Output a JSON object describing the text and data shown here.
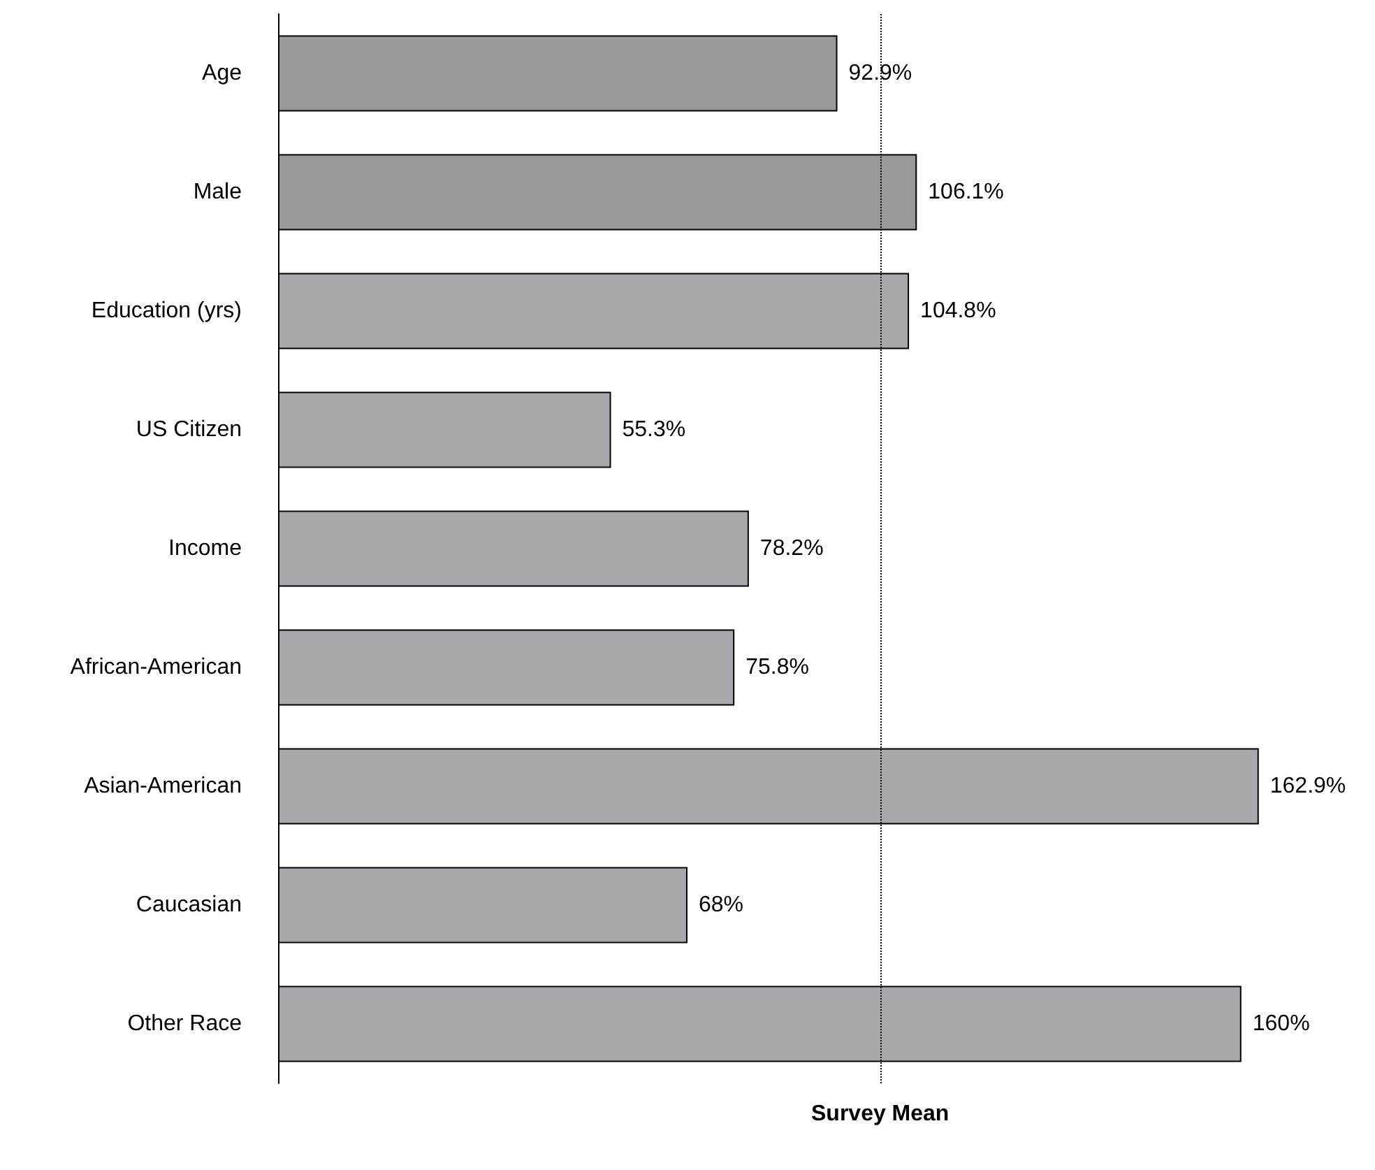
{
  "chart_data": {
    "type": "bar",
    "orientation": "horizontal",
    "categories": [
      "Age",
      "Male",
      "Education (yrs)",
      "US Citizen",
      "Income",
      "African-American",
      "Asian-American",
      "Caucasian",
      "Other Race"
    ],
    "series": [
      {
        "colors": [
          "#999999",
          "#999999",
          "#a7a8ab",
          "#a7a8ab",
          "#a7a8ab",
          "#a7a8ab",
          "#a7a8ab",
          "#a7a8ab",
          "#a7a8ab"
        ],
        "values": [
          92.9,
          106.1,
          104.8,
          55.3,
          78.2,
          75.8,
          162.9,
          68,
          160
        ],
        "value_labels": [
          "92.9%",
          "106.1%",
          "104.8%",
          "55.3%",
          "78.2%",
          "75.8%",
          "162.9%",
          "68%",
          "160%"
        ]
      }
    ],
    "tick_labels": "y",
    "ref_lines": [
      {
        "axis": "x",
        "value": 100,
        "label": "Survey Mean",
        "line_style": "dotted",
        "color": "#000000"
      }
    ]
  }
}
